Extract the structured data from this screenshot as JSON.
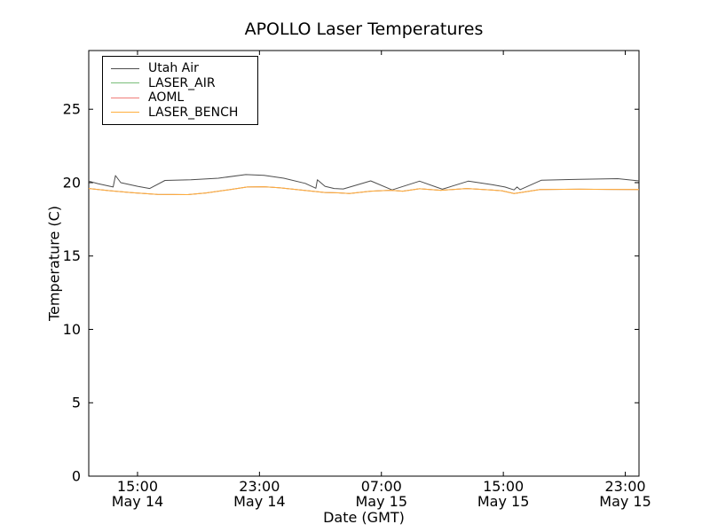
{
  "figure": {
    "background": "#ffffff",
    "axis_color": "#000000"
  },
  "legend": {
    "position": "upper left",
    "entries": [
      {
        "label": "Utah Air",
        "color": "#4d4d4d"
      },
      {
        "label": "LASER_AIR",
        "color": "#79bd79"
      },
      {
        "label": "AOML",
        "color": "#f07c78"
      },
      {
        "label": "LASER_BENCH",
        "color": "#ffae3c"
      }
    ]
  },
  "chart_data": {
    "type": "line",
    "title": "APOLLO Laser Temperatures",
    "xlabel": "Date (GMT)",
    "ylabel": "Temperature (C)",
    "x_unit": "hours since May 14 00:00 GMT",
    "xlim": [
      11.8,
      47.9
    ],
    "ylim": [
      0,
      29
    ],
    "grid": false,
    "legend_position": "upper left",
    "yticks": [
      0,
      5,
      10,
      15,
      20,
      25
    ],
    "xticks": [
      {
        "t": 15,
        "time": "15:00",
        "date": "May 14"
      },
      {
        "t": 23,
        "time": "23:00",
        "date": "May 14"
      },
      {
        "t": 31,
        "time": "07:00",
        "date": "May 15"
      },
      {
        "t": 39,
        "time": "15:00",
        "date": "May 15"
      },
      {
        "t": 47,
        "time": "23:00",
        "date": "May 15"
      }
    ],
    "series": [
      {
        "name": "Utah Air",
        "color": "#4d4d4d",
        "points": [
          [
            11.8,
            20.1
          ],
          [
            12.4,
            19.93
          ],
          [
            13.4,
            19.7
          ],
          [
            13.55,
            20.48
          ],
          [
            13.9,
            20.0
          ],
          [
            15.0,
            19.75
          ],
          [
            15.8,
            19.6
          ],
          [
            16.8,
            20.15
          ],
          [
            18.5,
            20.2
          ],
          [
            20.3,
            20.3
          ],
          [
            22.1,
            20.55
          ],
          [
            23.3,
            20.5
          ],
          [
            24.6,
            20.3
          ],
          [
            26.0,
            19.95
          ],
          [
            26.7,
            19.62
          ],
          [
            26.8,
            20.2
          ],
          [
            27.3,
            19.75
          ],
          [
            27.9,
            19.6
          ],
          [
            28.5,
            19.57
          ],
          [
            30.3,
            20.12
          ],
          [
            31.7,
            19.5
          ],
          [
            33.5,
            20.1
          ],
          [
            35.0,
            19.55
          ],
          [
            36.7,
            20.1
          ],
          [
            38.3,
            19.85
          ],
          [
            39.1,
            19.7
          ],
          [
            39.7,
            19.5
          ],
          [
            39.9,
            19.7
          ],
          [
            40.1,
            19.52
          ],
          [
            41.5,
            20.17
          ],
          [
            44.0,
            20.22
          ],
          [
            46.5,
            20.27
          ],
          [
            47.9,
            20.12
          ]
        ]
      },
      {
        "name": "LASER_AIR",
        "color": "#79bd79",
        "note": "coincides with LASER_BENCH trace (hidden beneath it in plot)",
        "points": [
          [
            11.8,
            19.6
          ],
          [
            13.2,
            19.45
          ],
          [
            14.6,
            19.32
          ],
          [
            16.3,
            19.2
          ],
          [
            18.3,
            19.18
          ],
          [
            19.5,
            19.3
          ],
          [
            20.9,
            19.5
          ],
          [
            22.2,
            19.7
          ],
          [
            23.3,
            19.72
          ],
          [
            24.3,
            19.65
          ],
          [
            25.7,
            19.5
          ],
          [
            27.3,
            19.33
          ],
          [
            28.3,
            19.3
          ],
          [
            28.9,
            19.26
          ],
          [
            30.3,
            19.42
          ],
          [
            31.6,
            19.48
          ],
          [
            32.4,
            19.42
          ],
          [
            33.5,
            19.58
          ],
          [
            34.9,
            19.48
          ],
          [
            36.6,
            19.6
          ],
          [
            38.2,
            19.5
          ],
          [
            38.9,
            19.45
          ],
          [
            39.7,
            19.26
          ],
          [
            40.1,
            19.32
          ],
          [
            41.4,
            19.53
          ],
          [
            44.0,
            19.55
          ],
          [
            46.0,
            19.54
          ],
          [
            47.9,
            19.53
          ]
        ]
      },
      {
        "name": "AOML",
        "color": "#f07c78",
        "note": "coincides with LASER_BENCH trace (hidden beneath it in plot)",
        "points": [
          [
            11.8,
            19.6
          ],
          [
            13.2,
            19.45
          ],
          [
            14.6,
            19.32
          ],
          [
            16.3,
            19.2
          ],
          [
            18.3,
            19.18
          ],
          [
            19.5,
            19.3
          ],
          [
            20.9,
            19.5
          ],
          [
            22.2,
            19.7
          ],
          [
            23.3,
            19.72
          ],
          [
            24.3,
            19.65
          ],
          [
            25.7,
            19.5
          ],
          [
            27.3,
            19.33
          ],
          [
            28.3,
            19.3
          ],
          [
            28.9,
            19.26
          ],
          [
            30.3,
            19.42
          ],
          [
            31.6,
            19.48
          ],
          [
            32.4,
            19.42
          ],
          [
            33.5,
            19.58
          ],
          [
            34.9,
            19.48
          ],
          [
            36.6,
            19.6
          ],
          [
            38.2,
            19.5
          ],
          [
            38.9,
            19.45
          ],
          [
            39.7,
            19.26
          ],
          [
            40.1,
            19.32
          ],
          [
            41.4,
            19.53
          ],
          [
            44.0,
            19.55
          ],
          [
            46.0,
            19.54
          ],
          [
            47.9,
            19.53
          ]
        ]
      },
      {
        "name": "LASER_BENCH",
        "color": "#ffae3c",
        "points": [
          [
            11.8,
            19.6
          ],
          [
            13.2,
            19.45
          ],
          [
            14.6,
            19.32
          ],
          [
            16.3,
            19.2
          ],
          [
            18.3,
            19.18
          ],
          [
            19.5,
            19.3
          ],
          [
            20.9,
            19.5
          ],
          [
            22.2,
            19.7
          ],
          [
            23.3,
            19.72
          ],
          [
            24.3,
            19.65
          ],
          [
            25.7,
            19.5
          ],
          [
            27.3,
            19.33
          ],
          [
            28.3,
            19.3
          ],
          [
            28.9,
            19.26
          ],
          [
            30.3,
            19.42
          ],
          [
            31.6,
            19.48
          ],
          [
            32.4,
            19.42
          ],
          [
            33.5,
            19.58
          ],
          [
            34.9,
            19.48
          ],
          [
            36.6,
            19.6
          ],
          [
            38.2,
            19.5
          ],
          [
            38.9,
            19.45
          ],
          [
            39.7,
            19.26
          ],
          [
            40.1,
            19.32
          ],
          [
            41.4,
            19.53
          ],
          [
            44.0,
            19.55
          ],
          [
            46.0,
            19.54
          ],
          [
            47.9,
            19.53
          ]
        ]
      }
    ]
  }
}
